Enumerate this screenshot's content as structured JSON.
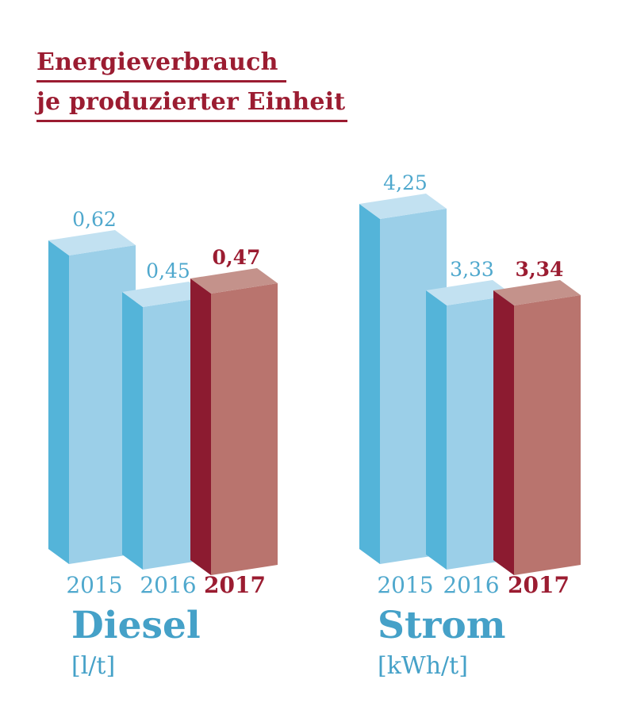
{
  "title": {
    "line1": "Energieverbrauch",
    "line2": "je produzierter Einheit"
  },
  "colors": {
    "accent_red": "#9b1c31",
    "label_blue": "#4fa8cd",
    "heading_blue": "#45a1c8",
    "bar_blue": {
      "side": "#54b4d9",
      "front": "#9bcfe8",
      "top": "#c2e1f1"
    },
    "bar_red": {
      "side": "#8c1b30",
      "front": "#b9746e",
      "top": "#c4928b"
    }
  },
  "chart_data": {
    "type": "bar",
    "title": "Energieverbrauch je produzierter Einheit",
    "categories": [
      "2015",
      "2016",
      "2017"
    ],
    "highlight_category": "2017",
    "legend": "none",
    "style": "3d-oblique-infographic-bars",
    "groups": [
      {
        "name": "Diesel",
        "unit": "[l/t]",
        "values": [
          0.62,
          0.45,
          0.47
        ],
        "value_labels": [
          "0,62",
          "0,45",
          "0,47"
        ]
      },
      {
        "name": "Strom",
        "unit": "[kWh/t]",
        "values": [
          4.25,
          3.33,
          3.34
        ],
        "value_labels": [
          "4,25",
          "3,33",
          "3,34"
        ]
      }
    ]
  }
}
